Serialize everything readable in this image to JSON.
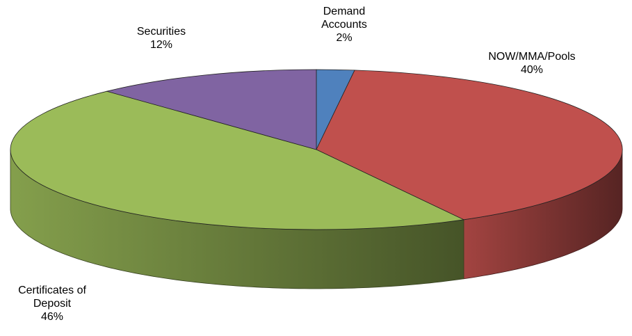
{
  "chart_data": {
    "type": "pie",
    "categories": [
      "Demand Accounts",
      "NOW/MMA/Pools",
      "Certificates of Deposit",
      "Securities"
    ],
    "values": [
      2,
      40,
      46,
      12
    ],
    "value_labels": [
      "2%",
      "40%",
      "46%",
      "12%"
    ],
    "colors": [
      "#4f81bd",
      "#c0504d",
      "#9bbb59",
      "#8064a2"
    ]
  }
}
